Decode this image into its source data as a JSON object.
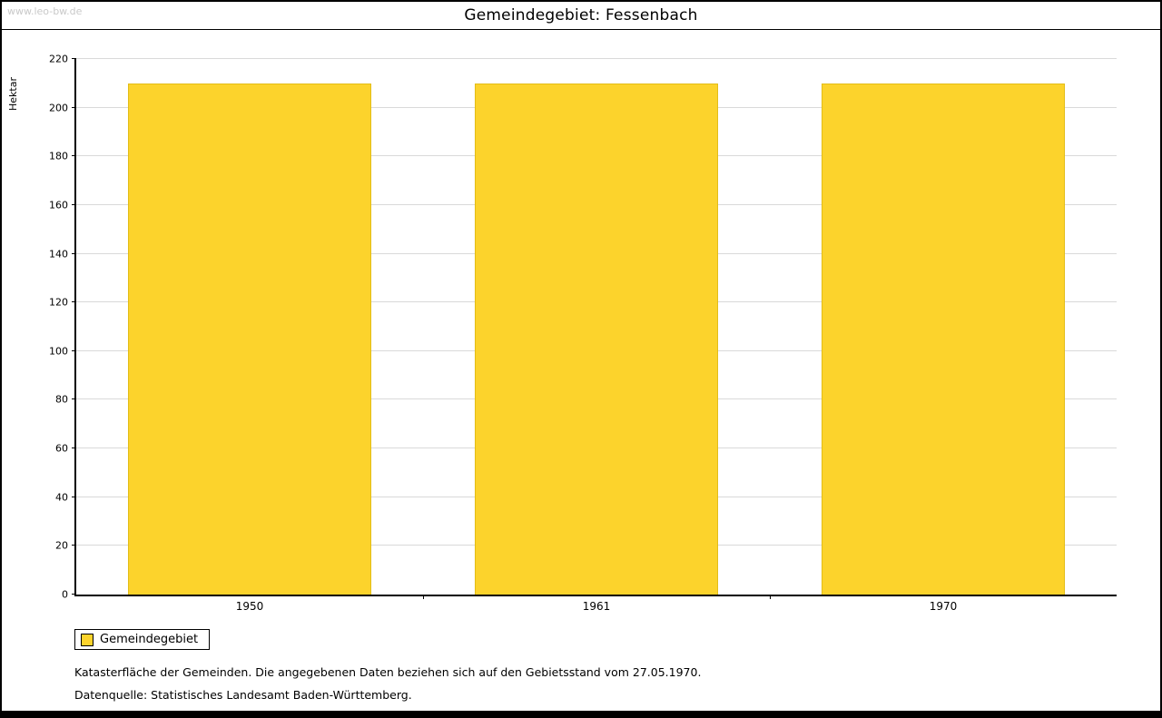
{
  "watermark": "www.leo-bw.de",
  "title": "Gemeindegebiet: Fessenbach",
  "chart_data": {
    "type": "bar",
    "title": "Gemeindegebiet: Fessenbach",
    "categories": [
      "1950",
      "1961",
      "1970"
    ],
    "series": [
      {
        "name": "Gemeindegebiet",
        "values": [
          210,
          210,
          210
        ]
      }
    ],
    "xlabel": "",
    "ylabel": "Hektar",
    "ylim": [
      0,
      220
    ],
    "ytick_step": 20,
    "grid": true,
    "bar_color": "#FCD32C",
    "legend_position": "bottom-left"
  },
  "legend": {
    "label": "Gemeindegebiet",
    "swatch_color": "#FCD32C"
  },
  "captions": {
    "line1": "Katasterfläche der Gemeinden. Die angegebenen Daten beziehen sich auf den Gebietsstand vom 27.05.1970.",
    "line2": "Datenquelle: Statistisches Landesamt Baden-Württemberg."
  }
}
